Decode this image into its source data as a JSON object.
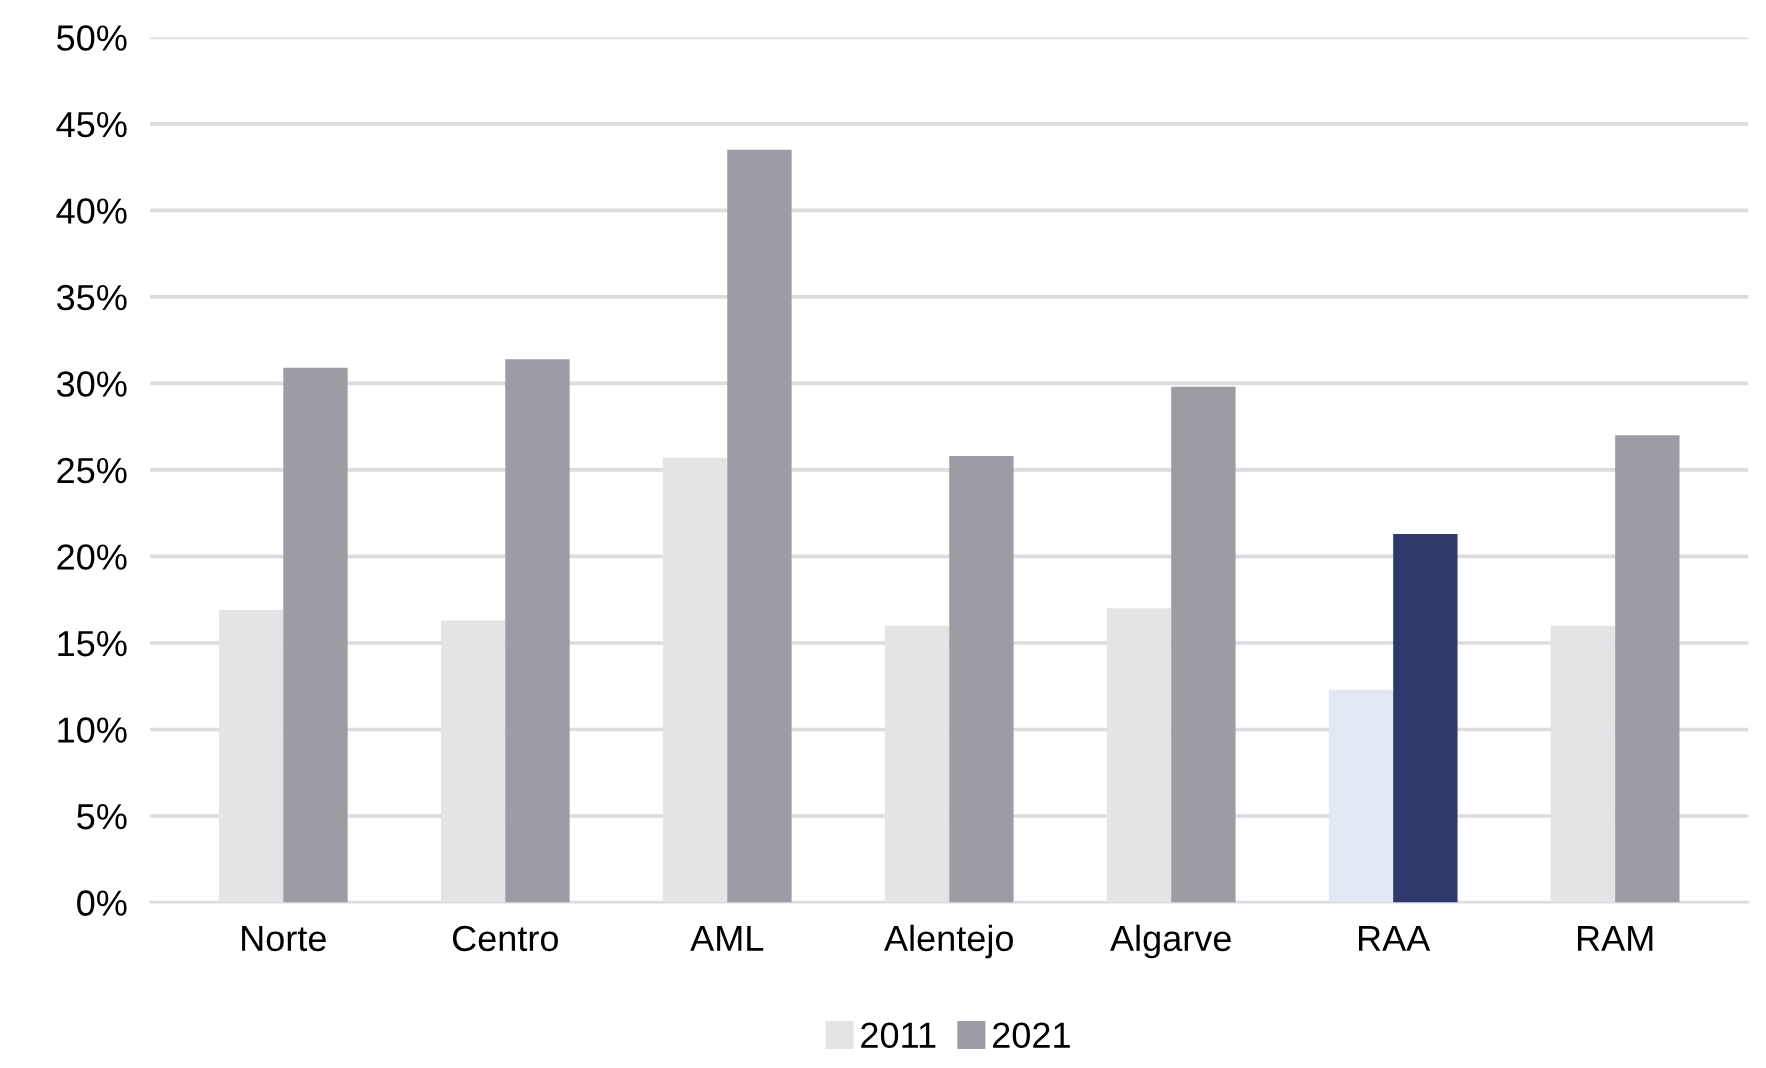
{
  "chart_data": {
    "type": "bar",
    "categories": [
      "Norte",
      "Centro",
      "AML",
      "Alentejo",
      "Algarve",
      "RAA",
      "RAM"
    ],
    "series": [
      {
        "name": "2011",
        "color": "#e4e4e6",
        "colors": [
          "#e4e4e6",
          "#e4e4e6",
          "#e4e4e6",
          "#e4e4e6",
          "#e4e4e6",
          "#e1e7f3",
          "#e4e4e6"
        ],
        "values": [
          16.9,
          16.3,
          25.7,
          16.0,
          17.0,
          12.3,
          16.0
        ]
      },
      {
        "name": "2021",
        "color": "#9c9ca5",
        "colors": [
          "#9c9ca5",
          "#9c9ca5",
          "#9c9ca5",
          "#9c9ca5",
          "#9c9ca5",
          "#2e3a6b",
          "#9c9ca5"
        ],
        "values": [
          30.9,
          31.4,
          43.5,
          25.8,
          29.8,
          21.3,
          27.0
        ]
      }
    ],
    "ylim": [
      0,
      50
    ],
    "yticks": [
      {
        "value": 0,
        "label": "0%"
      },
      {
        "value": 5,
        "label": "5%"
      },
      {
        "value": 10,
        "label": "10%"
      },
      {
        "value": 15,
        "label": "15%"
      },
      {
        "value": 20,
        "label": "20%"
      },
      {
        "value": 25,
        "label": "25%"
      },
      {
        "value": 30,
        "label": "30%"
      },
      {
        "value": 35,
        "label": "35%"
      },
      {
        "value": 40,
        "label": "40%"
      },
      {
        "value": 45,
        "label": "45%"
      },
      {
        "value": 50,
        "label": "50%"
      }
    ],
    "grid": "y",
    "legend": "bottom"
  }
}
